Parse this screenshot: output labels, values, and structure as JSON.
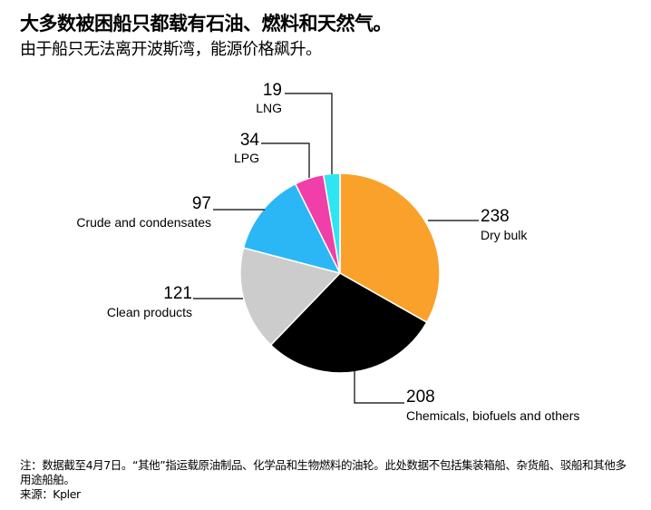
{
  "title": "大多数被困船只都载有石油、燃料和天然气。",
  "subtitle": "由于船只无法离开波斯湾，能源价格飙升。",
  "chart_data": {
    "type": "pie",
    "start_angle": "12 o'clock, clockwise",
    "slices": [
      {
        "label": "Dry bulk",
        "value": 238,
        "display": "238",
        "color": "#f9a12a"
      },
      {
        "label": "Chemicals, biofuels and others",
        "value": 208,
        "display": "208",
        "color": "#000000"
      },
      {
        "label": "Clean products",
        "value": 121,
        "display": "121",
        "color": "#cccccc"
      },
      {
        "label": "Crude and condensates",
        "value": 97,
        "display": "97",
        "color": "#2bb6f6"
      },
      {
        "label": "LPG",
        "value": 34,
        "display": "34",
        "color": "#f03fa8"
      },
      {
        "label": "LNG",
        "value": 19,
        "display": "19",
        "color": "#2ee5f2"
      }
    ]
  },
  "footnote": {
    "note": "注：数据截至4月7日。“其他”指运载原油制品、化学品和生物燃料的油轮。此处数据不包括集装箱船、杂货船、驳船和其他多用途船舶。",
    "source": "来源：Kpler"
  }
}
